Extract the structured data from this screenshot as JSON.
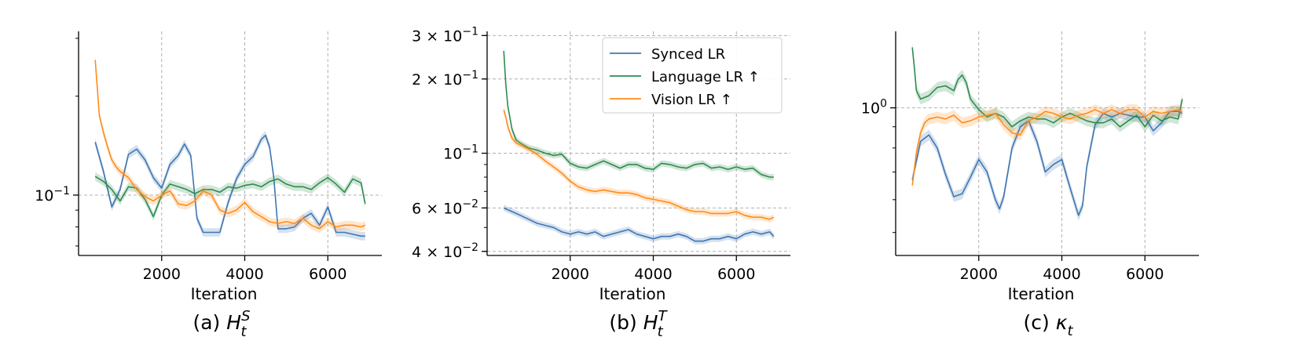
{
  "legend": {
    "placement": "top-right of panel b",
    "entries": [
      {
        "label": "Synced LR",
        "color": "#3f76b1"
      },
      {
        "label": "Language LR ↑",
        "color": "#2e8b4e"
      },
      {
        "label": "Vision LR ↑",
        "color": "#ff8c1a"
      }
    ]
  },
  "chart_data": [
    {
      "type": "line",
      "caption": "(a) ",
      "caption_symbol": "H",
      "caption_sub": "t",
      "caption_sup": "S",
      "xlabel": "Iteration",
      "ylabel": "",
      "xlim": [
        0,
        7300
      ],
      "yscale": "log",
      "ylim": [
        0.0655,
        0.315
      ],
      "xticks": [
        2000,
        4000,
        6000
      ],
      "xtick_labels": [
        "2000",
        "4000",
        "6000"
      ],
      "yticks": [
        0.1
      ],
      "ytick_labels": [
        "10⁻¹"
      ],
      "grid": true,
      "series": [
        {
          "name": "Synced LR",
          "color": "#3f76b1",
          "x": [
            400,
            600,
            800,
            1000,
            1200,
            1400,
            1600,
            1800,
            2000,
            2200,
            2400,
            2550,
            2700,
            2850,
            3000,
            3200,
            3400,
            3600,
            3800,
            4000,
            4200,
            4400,
            4500,
            4600,
            4700,
            4800,
            5000,
            5200,
            5400,
            5600,
            5800,
            6000,
            6200,
            6400,
            6600,
            6800,
            6900
          ],
          "y": [
            0.145,
            0.118,
            0.092,
            0.104,
            0.133,
            0.138,
            0.128,
            0.113,
            0.105,
            0.124,
            0.132,
            0.143,
            0.132,
            0.085,
            0.077,
            0.077,
            0.077,
            0.095,
            0.112,
            0.124,
            0.131,
            0.148,
            0.152,
            0.14,
            0.113,
            0.079,
            0.079,
            0.08,
            0.085,
            0.088,
            0.081,
            0.092,
            0.077,
            0.077,
            0.076,
            0.075,
            0.075
          ]
        },
        {
          "name": "Language LR ↑",
          "color": "#2e8b4e",
          "x": [
            400,
            600,
            800,
            1000,
            1200,
            1400,
            1600,
            1800,
            2000,
            2200,
            2400,
            2600,
            2800,
            3000,
            3200,
            3400,
            3600,
            3800,
            4000,
            4200,
            4400,
            4600,
            4800,
            5000,
            5200,
            5400,
            5600,
            5800,
            6000,
            6200,
            6400,
            6600,
            6800,
            6900
          ],
          "y": [
            0.114,
            0.11,
            0.104,
            0.096,
            0.106,
            0.105,
            0.097,
            0.086,
            0.1,
            0.108,
            0.106,
            0.104,
            0.101,
            0.104,
            0.104,
            0.102,
            0.106,
            0.105,
            0.107,
            0.108,
            0.106,
            0.11,
            0.112,
            0.108,
            0.106,
            0.106,
            0.104,
            0.109,
            0.113,
            0.108,
            0.102,
            0.112,
            0.109,
            0.094
          ]
        },
        {
          "name": "Vision LR ↑",
          "color": "#ff8c1a",
          "x": [
            400,
            500,
            600,
            700,
            800,
            900,
            1000,
            1200,
            1400,
            1600,
            1800,
            2000,
            2200,
            2400,
            2600,
            2800,
            3000,
            3200,
            3400,
            3600,
            3800,
            4000,
            4200,
            4400,
            4600,
            4800,
            5000,
            5200,
            5400,
            5600,
            5800,
            6000,
            6200,
            6400,
            6600,
            6800,
            6900
          ],
          "y": [
            0.258,
            0.175,
            0.155,
            0.14,
            0.128,
            0.122,
            0.118,
            0.113,
            0.104,
            0.099,
            0.096,
            0.1,
            0.103,
            0.094,
            0.093,
            0.096,
            0.103,
            0.1,
            0.09,
            0.088,
            0.09,
            0.095,
            0.089,
            0.086,
            0.083,
            0.082,
            0.083,
            0.082,
            0.085,
            0.081,
            0.079,
            0.083,
            0.08,
            0.081,
            0.081,
            0.08,
            0.081
          ]
        }
      ]
    },
    {
      "type": "line",
      "caption": "(b) ",
      "caption_symbol": "H",
      "caption_sub": "t",
      "caption_sup": "T",
      "xlabel": "Iteration",
      "ylabel": "",
      "xlim": [
        0,
        7300
      ],
      "yscale": "log",
      "ylim": [
        0.0385,
        0.312
      ],
      "xticks": [
        2000,
        4000,
        6000
      ],
      "xtick_labels": [
        "2000",
        "4000",
        "6000"
      ],
      "yticks": [
        0.04,
        0.06,
        0.1,
        0.2,
        0.3
      ],
      "ytick_labels": [
        "4 × 10⁻²",
        "6 × 10⁻²",
        "10⁻¹",
        "2 × 10⁻¹",
        "3 × 10⁻¹"
      ],
      "grid": true,
      "series": [
        {
          "name": "Synced LR",
          "color": "#3f76b1",
          "x": [
            400,
            600,
            800,
            1000,
            1200,
            1400,
            1600,
            1800,
            2000,
            2200,
            2400,
            2600,
            2800,
            3000,
            3200,
            3400,
            3600,
            3800,
            4000,
            4200,
            4400,
            4600,
            4800,
            5000,
            5200,
            5400,
            5600,
            5800,
            6000,
            6200,
            6400,
            6600,
            6800,
            6900
          ],
          "y": [
            0.06,
            0.058,
            0.056,
            0.054,
            0.052,
            0.051,
            0.05,
            0.048,
            0.047,
            0.048,
            0.047,
            0.048,
            0.046,
            0.047,
            0.048,
            0.049,
            0.047,
            0.046,
            0.045,
            0.046,
            0.046,
            0.047,
            0.046,
            0.044,
            0.044,
            0.045,
            0.045,
            0.046,
            0.045,
            0.047,
            0.048,
            0.047,
            0.048,
            0.046
          ]
        },
        {
          "name": "Language LR ↑",
          "color": "#2e8b4e",
          "x": [
            400,
            450,
            500,
            600,
            700,
            800,
            1000,
            1200,
            1400,
            1600,
            1800,
            2000,
            2200,
            2400,
            2600,
            2800,
            3000,
            3200,
            3400,
            3600,
            3800,
            4000,
            4200,
            4400,
            4600,
            4800,
            5000,
            5200,
            5400,
            5600,
            5800,
            6000,
            6200,
            6400,
            6600,
            6800,
            6900
          ],
          "y": [
            0.26,
            0.19,
            0.155,
            0.125,
            0.113,
            0.11,
            0.105,
            0.103,
            0.1,
            0.098,
            0.099,
            0.091,
            0.088,
            0.087,
            0.09,
            0.093,
            0.09,
            0.087,
            0.09,
            0.09,
            0.087,
            0.086,
            0.091,
            0.09,
            0.088,
            0.087,
            0.09,
            0.091,
            0.087,
            0.088,
            0.086,
            0.088,
            0.086,
            0.087,
            0.082,
            0.08,
            0.08
          ]
        },
        {
          "name": "Vision LR ↑",
          "color": "#ff8c1a",
          "x": [
            400,
            450,
            500,
            600,
            700,
            800,
            1000,
            1200,
            1400,
            1600,
            1800,
            2000,
            2200,
            2400,
            2600,
            2800,
            3000,
            3200,
            3400,
            3600,
            3800,
            4000,
            4200,
            4400,
            4600,
            4800,
            5000,
            5200,
            5400,
            5600,
            5800,
            6000,
            6200,
            6400,
            6600,
            6800,
            6900
          ],
          "y": [
            0.15,
            0.14,
            0.128,
            0.115,
            0.11,
            0.108,
            0.104,
            0.099,
            0.093,
            0.088,
            0.083,
            0.077,
            0.073,
            0.071,
            0.07,
            0.071,
            0.07,
            0.069,
            0.069,
            0.068,
            0.066,
            0.065,
            0.064,
            0.063,
            0.061,
            0.059,
            0.058,
            0.058,
            0.057,
            0.057,
            0.057,
            0.058,
            0.056,
            0.055,
            0.055,
            0.054,
            0.055
          ]
        }
      ]
    },
    {
      "type": "line",
      "caption": "(c) ",
      "caption_symbol": "κ",
      "caption_sub": "t",
      "caption_sup": "",
      "xlabel": "Iteration",
      "ylabel": "",
      "xlim": [
        0,
        7300
      ],
      "yscale": "log",
      "ylim": [
        0.44,
        1.53
      ],
      "xticks": [
        2000,
        4000,
        6000
      ],
      "xtick_labels": [
        "2000",
        "4000",
        "6000"
      ],
      "yticks": [
        1.0
      ],
      "ytick_labels": [
        "10⁰"
      ],
      "grid": true,
      "series": [
        {
          "name": "Synced LR",
          "color": "#3f76b1",
          "x": [
            400,
            600,
            800,
            1000,
            1200,
            1400,
            1600,
            1800,
            2000,
            2200,
            2400,
            2500,
            2600,
            2800,
            3000,
            3200,
            3400,
            3600,
            3800,
            4000,
            4200,
            4400,
            4500,
            4600,
            4800,
            5000,
            5200,
            5400,
            5600,
            5800,
            6000,
            6200,
            6400,
            6600,
            6800,
            6900
          ],
          "y": [
            0.67,
            0.83,
            0.86,
            0.8,
            0.69,
            0.61,
            0.62,
            0.68,
            0.75,
            0.7,
            0.6,
            0.57,
            0.61,
            0.8,
            0.9,
            0.93,
            0.83,
            0.7,
            0.73,
            0.75,
            0.64,
            0.55,
            0.58,
            0.72,
            0.91,
            0.97,
            0.95,
            0.97,
            0.96,
            0.95,
            0.95,
            0.88,
            0.92,
            0.98,
            0.98,
            0.97
          ]
        },
        {
          "name": "Language LR ↑",
          "color": "#2e8b4e",
          "x": [
            400,
            450,
            500,
            600,
            800,
            1000,
            1200,
            1400,
            1500,
            1600,
            1700,
            1800,
            2000,
            2200,
            2400,
            2600,
            2800,
            3000,
            3200,
            3400,
            3600,
            3800,
            4000,
            4200,
            4400,
            4600,
            4800,
            5000,
            5200,
            5400,
            5600,
            5800,
            6000,
            6200,
            6400,
            6600,
            6800,
            6900
          ],
          "y": [
            1.4,
            1.25,
            1.1,
            1.05,
            1.07,
            1.12,
            1.13,
            1.1,
            1.17,
            1.2,
            1.15,
            1.05,
            0.99,
            0.95,
            0.97,
            0.95,
            0.9,
            0.93,
            0.95,
            0.94,
            0.94,
            0.92,
            0.95,
            0.97,
            0.95,
            0.93,
            0.92,
            0.92,
            0.94,
            0.9,
            0.93,
            0.96,
            0.9,
            0.96,
            0.93,
            0.95,
            0.94,
            1.05
          ]
        },
        {
          "name": "Vision LR ↑",
          "color": "#ff8c1a",
          "x": [
            400,
            500,
            600,
            700,
            800,
            1000,
            1200,
            1400,
            1600,
            1800,
            2000,
            2200,
            2400,
            2600,
            2800,
            3000,
            3200,
            3400,
            3600,
            3800,
            4000,
            4200,
            4400,
            4600,
            4800,
            5000,
            5200,
            5400,
            5600,
            5800,
            6000,
            6200,
            6400,
            6600,
            6800,
            6900
          ],
          "y": [
            0.65,
            0.78,
            0.87,
            0.92,
            0.94,
            0.95,
            0.94,
            0.96,
            0.92,
            0.93,
            0.95,
            0.96,
            0.97,
            0.91,
            0.87,
            0.86,
            0.93,
            0.95,
            0.98,
            0.97,
            0.95,
            0.94,
            0.96,
            0.97,
            0.99,
            0.97,
            0.99,
            0.97,
            0.99,
            0.99,
            0.95,
            0.98,
            0.97,
            0.98,
            0.99,
            0.98
          ]
        }
      ]
    }
  ]
}
